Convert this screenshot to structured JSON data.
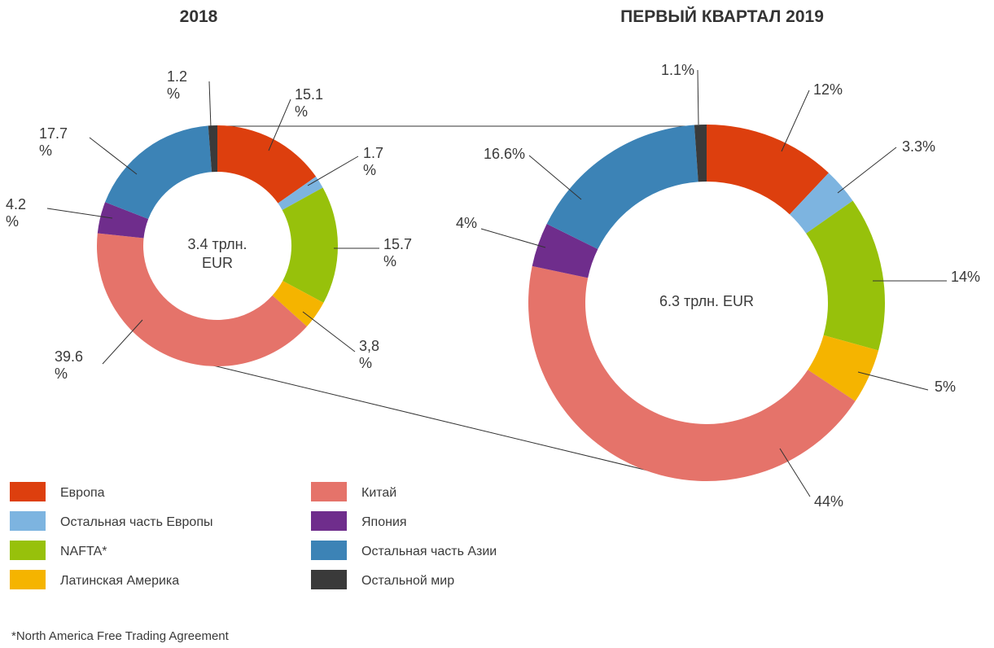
{
  "chart_data": {
    "type": "pie",
    "series_names": [
      "Европа",
      "Остальная часть Европы",
      "NAFTA*",
      "Латинская Америка",
      "Китай",
      "Япония",
      "Остальная часть Азии",
      "Остальной мир"
    ],
    "colors": [
      "#dd3f0e",
      "#7db4e0",
      "#97c10b",
      "#f5b400",
      "#e5736a",
      "#6f2d8c",
      "#3c83b6",
      "#3a3a3a"
    ],
    "charts": [
      {
        "title": "2018",
        "center_label": [
          "3.4 трлн.",
          "EUR"
        ],
        "values": [
          15.1,
          1.7,
          15.7,
          3.8,
          39.6,
          4.2,
          17.7,
          1.2
        ],
        "value_labels": [
          [
            "15.1",
            "%"
          ],
          [
            "1.7",
            "%"
          ],
          [
            "15.7",
            "%"
          ],
          [
            "3,8",
            "%"
          ],
          [
            "39.6",
            "%"
          ],
          [
            "4.2",
            "%"
          ],
          [
            "17.7",
            "%"
          ],
          [
            "1.2",
            "%"
          ]
        ]
      },
      {
        "title": "ПЕРВЫЙ КВАРТАЛ 2019",
        "center_label": [
          "6.3 трлн. EUR"
        ],
        "values": [
          12,
          3.3,
          14,
          5,
          44,
          4,
          16.6,
          1.1
        ],
        "value_labels": [
          [
            "12%"
          ],
          [
            "3.3%"
          ],
          [
            "14%"
          ],
          [
            "5%"
          ],
          [
            "44%"
          ],
          [
            "4%"
          ],
          [
            "16.6%"
          ],
          [
            "1.1%"
          ]
        ]
      }
    ]
  },
  "legend": [
    {
      "label": "Европа",
      "color": "#dd3f0e"
    },
    {
      "label": "Остальная часть Европы",
      "color": "#7db4e0"
    },
    {
      "label": "NAFTA*",
      "color": "#97c10b"
    },
    {
      "label": "Латинская Америка",
      "color": "#f5b400"
    },
    {
      "label": "Китай",
      "color": "#e5736a"
    },
    {
      "label": "Япония",
      "color": "#6f2d8c"
    },
    {
      "label": "Остальная часть Азии",
      "color": "#3c83b6"
    },
    {
      "label": "Остальной мир",
      "color": "#3a3a3a"
    }
  ],
  "footnote": "*North America Free Trading Agreement"
}
